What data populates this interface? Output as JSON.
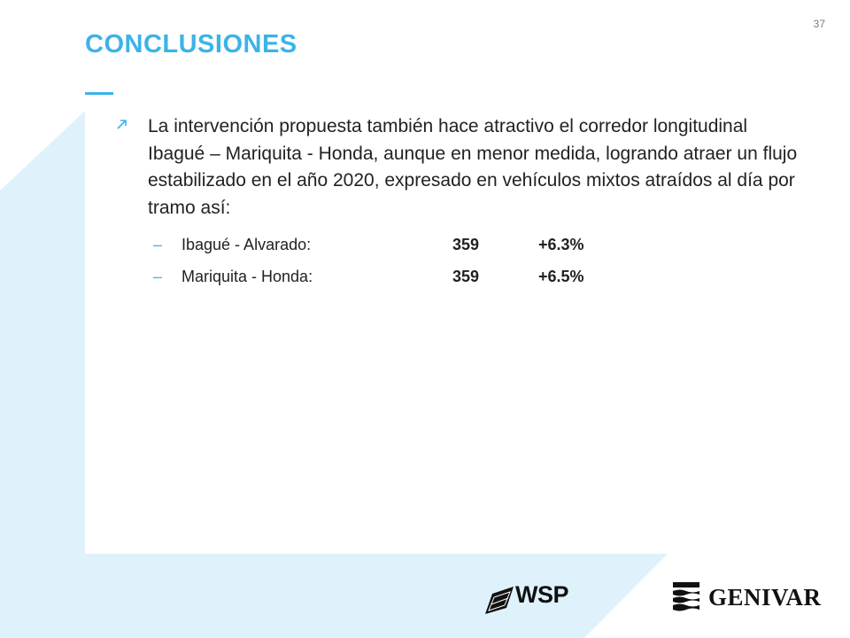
{
  "slide": {
    "number": "37",
    "title": "CONCLUSIONES"
  },
  "bullet": {
    "text": "La intervención propuesta también hace atractivo el corredor longitudinal Ibagué – Mariquita - Honda, aunque en menor medida, logrando atraer un flujo estabilizado en el año 2020, expresado en vehículos mixtos atraídos al día por tramo así:",
    "marker_icon": "arrow-up-right-icon"
  },
  "segments": [
    {
      "dash": "–",
      "label": "Ibagué - Alvarado:",
      "value": "359",
      "change": "+6.3%"
    },
    {
      "dash": "–",
      "label": "Mariquita - Honda:",
      "value": "359",
      "change": "+6.5%"
    }
  ],
  "logos": {
    "wsp": "WSP",
    "genivar": "GENIVAR"
  },
  "colors": {
    "accent": "#3cb3e8",
    "background_band": "#dff2fb",
    "text": "#222222"
  }
}
